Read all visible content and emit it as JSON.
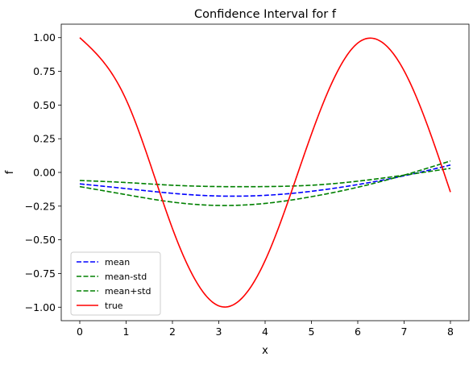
{
  "chart_data": {
    "type": "line",
    "title": "Confidence Interval for f",
    "xlabel": "x",
    "ylabel": "f",
    "xlim": [
      -0.4,
      8.4
    ],
    "ylim": [
      -1.1,
      1.1
    ],
    "xticks": [
      0,
      1,
      2,
      3,
      4,
      5,
      6,
      7,
      8
    ],
    "xtick_labels": [
      "0",
      "1",
      "2",
      "3",
      "4",
      "5",
      "6",
      "7",
      "8"
    ],
    "yticks": [
      1.0,
      0.75,
      0.5,
      0.25,
      0.0,
      -0.25,
      -0.5,
      -0.75,
      -1.0
    ],
    "ytick_labels": [
      "1.00",
      "0.75",
      "0.50",
      "0.25",
      "0.00",
      "−0.25",
      "−0.50",
      "−0.75",
      "−1.00"
    ],
    "grid": false,
    "legend_placement": "lower-left",
    "x": [
      0,
      1,
      2,
      3,
      4,
      5,
      6,
      7,
      8
    ],
    "series": [
      {
        "name": "mean",
        "color": "#0000ff",
        "style": "dashed",
        "values": [
          -0.085,
          -0.12,
          -0.155,
          -0.175,
          -0.17,
          -0.14,
          -0.09,
          -0.025,
          0.055
        ]
      },
      {
        "name": "mean-std",
        "color": "#008000",
        "style": "dashed",
        "values": [
          -0.06,
          -0.075,
          -0.095,
          -0.105,
          -0.105,
          -0.095,
          -0.065,
          -0.02,
          0.03
        ]
      },
      {
        "name": "mean+std",
        "color": "#008000",
        "style": "dashed",
        "values": [
          -0.105,
          -0.165,
          -0.22,
          -0.245,
          -0.23,
          -0.18,
          -0.11,
          -0.02,
          0.085
        ]
      },
      {
        "name": "true",
        "color": "#ff0000",
        "style": "solid",
        "values": [
          1.0,
          0.54,
          -0.416,
          -0.99,
          -0.654,
          0.284,
          0.96,
          0.754,
          -0.146
        ]
      }
    ]
  }
}
